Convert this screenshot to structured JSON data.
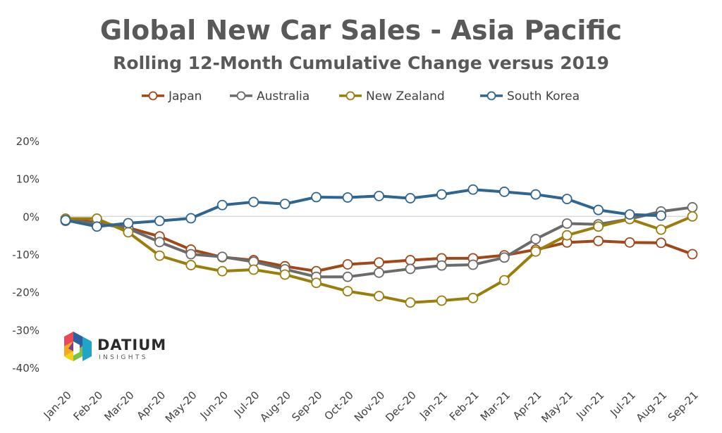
{
  "chart_data": {
    "type": "line",
    "title": "Global New Car Sales - Asia Pacific",
    "subtitle": "Rolling 12-Month Cumulative Change versus 2019",
    "legend_position": "top",
    "grid": "zero line only",
    "ylim": [
      -40,
      20
    ],
    "y_ticks": [
      "20%",
      "10%",
      "0%",
      "-10%",
      "-20%",
      "-30%",
      "-40%"
    ],
    "categories": [
      "Jan-20",
      "Feb-20",
      "Mar-20",
      "Apr-20",
      "May-20",
      "Jun-20",
      "Jul-20",
      "Aug-20",
      "Sep-20",
      "Oct-20",
      "Nov-20",
      "Dec-20",
      "Jan-21",
      "Feb-21",
      "Mar-21",
      "Apr-21",
      "May-21",
      "Jun-21",
      "Jul-21",
      "Aug-21",
      "Sep-21"
    ],
    "series": [
      {
        "name": "Japan",
        "color": "#a0481a",
        "values": [
          -1,
          -1.5,
          -3,
          -5.3,
          -8.8,
          -10.8,
          -11.6,
          -13.2,
          -14.5,
          -12.7,
          -12.2,
          -11.6,
          -11.1,
          -11.1,
          -10.3,
          -8.8,
          -6.9,
          -6.5,
          -6.9,
          -7,
          -10
        ]
      },
      {
        "name": "Australia",
        "color": "#6b6b6b",
        "values": [
          -1.2,
          -1.8,
          -3.2,
          -6.8,
          -10,
          -10.7,
          -12,
          -14,
          -16,
          -16,
          -14.9,
          -13.9,
          -13,
          -12.8,
          -10.9,
          -6,
          -1.9,
          -2.1,
          -0.7,
          1.3,
          2.4
        ]
      },
      {
        "name": "New Zealand",
        "color": "#9a7d0b",
        "values": [
          -0.6,
          -0.6,
          -4.2,
          -10.4,
          -12.9,
          -14.5,
          -14.1,
          -15.4,
          -17.6,
          -19.8,
          -21.1,
          -22.8,
          -22.3,
          -21.6,
          -16.9,
          -9.3,
          -5,
          -2.7,
          -0.7,
          -3.5,
          0
        ]
      },
      {
        "name": "South Korea",
        "color": "#2e6591",
        "values": [
          -1,
          -2.7,
          -1.8,
          -1.2,
          -0.5,
          3,
          3.8,
          3.3,
          5.1,
          5,
          5.4,
          4.8,
          5.8,
          7.1,
          6.5,
          5.8,
          4.6,
          1.7,
          0.5,
          0.2,
          null
        ]
      }
    ]
  },
  "logo": {
    "name": "DATIUM",
    "tagline": "INSIGHTS"
  }
}
